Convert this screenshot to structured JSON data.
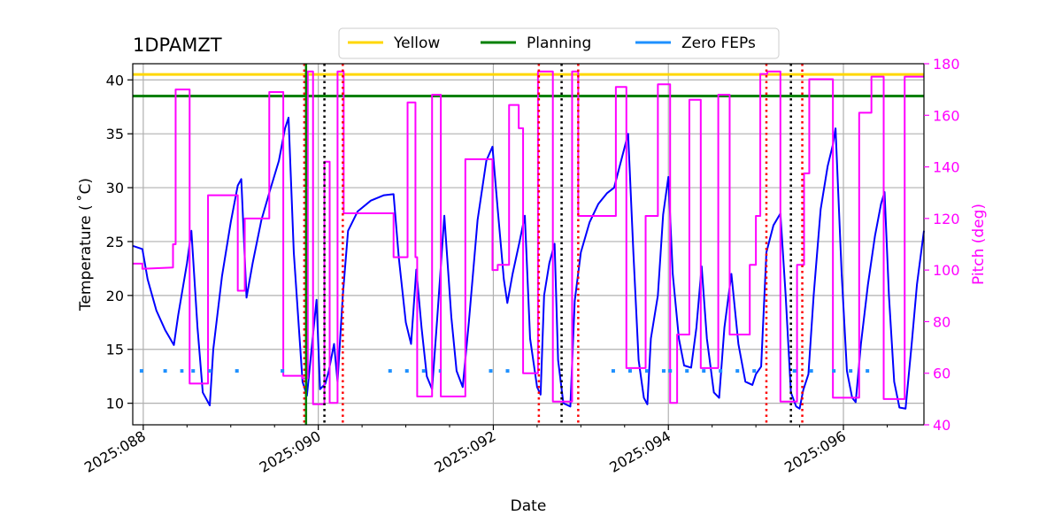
{
  "chart_data": {
    "type": "line",
    "title": "1DPAMZT",
    "xlabel": "Date",
    "ylabel": "Temperature ($^\\circ$C)",
    "ylabel_display": "Temperature ( ˚C)",
    "y2label": "Pitch (deg)",
    "x_unit": "day of year 2025",
    "xlim": [
      87.88,
      96.92
    ],
    "ylim": [
      8.0,
      41.5
    ],
    "y2lim": [
      40,
      180
    ],
    "x_ticks": [
      {
        "value": 88,
        "label": "2025:088"
      },
      {
        "value": 90,
        "label": "2025:090"
      },
      {
        "value": 92,
        "label": "2025:092"
      },
      {
        "value": 94,
        "label": "2025:094"
      },
      {
        "value": 96,
        "label": "2025:096"
      }
    ],
    "y_ticks": [
      10,
      15,
      20,
      25,
      30,
      35,
      40
    ],
    "y2_ticks": [
      40,
      60,
      80,
      100,
      120,
      140,
      160,
      180
    ],
    "grid": true,
    "legend": {
      "placement": "top-center",
      "entries": [
        {
          "name": "Yellow",
          "color": "#ffd700"
        },
        {
          "name": "Planning",
          "color": "#008000"
        },
        {
          "name": "Zero FEPs",
          "color": "#1e90ff"
        }
      ]
    },
    "limits": [
      {
        "name": "Yellow",
        "value": 40.5,
        "color": "#ffd700"
      },
      {
        "name": "Planning",
        "value": 38.5,
        "color": "#008000"
      }
    ],
    "colors": {
      "temperature": "#0000ff",
      "pitch": "#ff00ff",
      "black_vlines": "#000000",
      "red_vlines": "#ff0000",
      "planning_vline": "#008000"
    },
    "series": [
      {
        "axis": "temperature",
        "color": "#0000ff",
        "points": [
          [
            87.88,
            24.6
          ],
          [
            87.99,
            24.3
          ],
          [
            88.05,
            21.5
          ],
          [
            88.15,
            18.6
          ],
          [
            88.25,
            16.8
          ],
          [
            88.35,
            15.4
          ],
          [
            88.4,
            18.2
          ],
          [
            88.5,
            23.0
          ],
          [
            88.55,
            26.0
          ],
          [
            88.62,
            17.0
          ],
          [
            88.68,
            11.0
          ],
          [
            88.76,
            9.8
          ],
          [
            88.8,
            15.0
          ],
          [
            88.9,
            21.8
          ],
          [
            89.0,
            26.8
          ],
          [
            89.08,
            30.2
          ],
          [
            89.12,
            30.8
          ],
          [
            89.18,
            19.8
          ],
          [
            89.25,
            23.0
          ],
          [
            89.35,
            27.0
          ],
          [
            89.45,
            29.8
          ],
          [
            89.55,
            32.5
          ],
          [
            89.62,
            35.5
          ],
          [
            89.66,
            36.5
          ],
          [
            89.72,
            24.0
          ],
          [
            89.82,
            12.0
          ],
          [
            89.87,
            10.7
          ],
          [
            89.96,
            18.0
          ],
          [
            89.98,
            19.6
          ],
          [
            90.02,
            11.3
          ],
          [
            90.08,
            11.8
          ],
          [
            90.12,
            13.0
          ],
          [
            90.18,
            15.5
          ],
          [
            90.22,
            12.0
          ],
          [
            90.28,
            20.0
          ],
          [
            90.34,
            26.0
          ],
          [
            90.45,
            27.8
          ],
          [
            90.6,
            28.8
          ],
          [
            90.75,
            29.3
          ],
          [
            90.86,
            29.4
          ],
          [
            90.92,
            23.5
          ],
          [
            91.0,
            17.5
          ],
          [
            91.06,
            15.5
          ],
          [
            91.12,
            22.4
          ],
          [
            91.18,
            17.0
          ],
          [
            91.24,
            12.5
          ],
          [
            91.3,
            11.3
          ],
          [
            91.36,
            18.0
          ],
          [
            91.44,
            27.4
          ],
          [
            91.52,
            18.0
          ],
          [
            91.58,
            13.0
          ],
          [
            91.65,
            11.5
          ],
          [
            91.72,
            17.5
          ],
          [
            91.82,
            27.0
          ],
          [
            91.92,
            32.5
          ],
          [
            91.99,
            33.8
          ],
          [
            92.05,
            28.0
          ],
          [
            92.12,
            21.5
          ],
          [
            92.16,
            19.3
          ],
          [
            92.22,
            22.0
          ],
          [
            92.3,
            25.0
          ],
          [
            92.36,
            27.4
          ],
          [
            92.42,
            16.0
          ],
          [
            92.5,
            11.5
          ],
          [
            92.54,
            10.8
          ],
          [
            92.58,
            20.0
          ],
          [
            92.64,
            23.0
          ],
          [
            92.7,
            24.8
          ],
          [
            92.74,
            14.0
          ],
          [
            92.8,
            10.0
          ],
          [
            92.88,
            9.7
          ],
          [
            92.93,
            19.5
          ],
          [
            93.0,
            24.0
          ],
          [
            93.1,
            26.8
          ],
          [
            93.2,
            28.5
          ],
          [
            93.3,
            29.5
          ],
          [
            93.38,
            30.0
          ],
          [
            93.46,
            32.5
          ],
          [
            93.54,
            35.0
          ],
          [
            93.6,
            24.0
          ],
          [
            93.66,
            14.0
          ],
          [
            93.72,
            10.5
          ],
          [
            93.76,
            9.9
          ],
          [
            93.8,
            16.0
          ],
          [
            93.88,
            20.0
          ],
          [
            93.94,
            27.5
          ],
          [
            94.0,
            31.0
          ],
          [
            94.05,
            22.0
          ],
          [
            94.12,
            16.0
          ],
          [
            94.18,
            13.5
          ],
          [
            94.26,
            13.3
          ],
          [
            94.32,
            17.0
          ],
          [
            94.38,
            22.7
          ],
          [
            94.44,
            16.0
          ],
          [
            94.52,
            11.0
          ],
          [
            94.58,
            10.5
          ],
          [
            94.64,
            17.0
          ],
          [
            94.72,
            22.0
          ],
          [
            94.8,
            15.5
          ],
          [
            94.88,
            12.0
          ],
          [
            94.96,
            11.7
          ],
          [
            95.0,
            12.7
          ],
          [
            95.06,
            13.4
          ],
          [
            95.12,
            24.0
          ],
          [
            95.2,
            26.5
          ],
          [
            95.28,
            27.6
          ],
          [
            95.34,
            20.0
          ],
          [
            95.4,
            11.0
          ],
          [
            95.46,
            9.7
          ],
          [
            95.5,
            9.5
          ],
          [
            95.54,
            11.2
          ],
          [
            95.6,
            12.7
          ],
          [
            95.66,
            20.0
          ],
          [
            95.74,
            28.0
          ],
          [
            95.82,
            32.0
          ],
          [
            95.88,
            34.0
          ],
          [
            95.91,
            35.5
          ],
          [
            95.98,
            22.0
          ],
          [
            96.04,
            13.0
          ],
          [
            96.1,
            10.5
          ],
          [
            96.14,
            10.1
          ],
          [
            96.2,
            15.5
          ],
          [
            96.28,
            21.0
          ],
          [
            96.36,
            25.5
          ],
          [
            96.43,
            28.5
          ],
          [
            96.47,
            29.6
          ],
          [
            96.52,
            20.0
          ],
          [
            96.58,
            12.0
          ],
          [
            96.64,
            9.6
          ],
          [
            96.71,
            9.5
          ],
          [
            96.78,
            15.5
          ],
          [
            96.84,
            21.0
          ],
          [
            96.92,
            26.0
          ]
        ]
      },
      {
        "axis": "pitch",
        "color": "#ff00ff",
        "points": [
          [
            87.88,
            102.5
          ],
          [
            87.99,
            102.5
          ],
          [
            87.99,
            100.5
          ],
          [
            88.34,
            101.0
          ],
          [
            88.34,
            110.0
          ],
          [
            88.37,
            110.0
          ],
          [
            88.37,
            170.0
          ],
          [
            88.53,
            170.0
          ],
          [
            88.53,
            56.0
          ],
          [
            88.74,
            56.0
          ],
          [
            88.74,
            129.0
          ],
          [
            89.08,
            129.0
          ],
          [
            89.08,
            92.0
          ],
          [
            89.16,
            92.0
          ],
          [
            89.16,
            120.0
          ],
          [
            89.44,
            120.0
          ],
          [
            89.44,
            169.0
          ],
          [
            89.6,
            169.0
          ],
          [
            89.6,
            59.0
          ],
          [
            89.82,
            59.0
          ],
          [
            89.82,
            58.0
          ],
          [
            89.88,
            58.0
          ],
          [
            89.88,
            177.0
          ],
          [
            89.94,
            177.0
          ],
          [
            89.94,
            48.0
          ],
          [
            90.07,
            48.0
          ],
          [
            90.07,
            142.0
          ],
          [
            90.13,
            142.0
          ],
          [
            90.13,
            48.5
          ],
          [
            90.22,
            48.5
          ],
          [
            90.22,
            177.0
          ],
          [
            90.29,
            177.0
          ],
          [
            90.29,
            122.0
          ],
          [
            90.86,
            122.0
          ],
          [
            90.86,
            105.0
          ],
          [
            91.02,
            105.0
          ],
          [
            91.02,
            165.0
          ],
          [
            91.11,
            165.0
          ],
          [
            91.11,
            105.0
          ],
          [
            91.13,
            105.0
          ],
          [
            91.13,
            51.0
          ],
          [
            91.3,
            51.0
          ],
          [
            91.3,
            168.0
          ],
          [
            91.4,
            168.0
          ],
          [
            91.4,
            51.0
          ],
          [
            91.68,
            51.0
          ],
          [
            91.68,
            143.0
          ],
          [
            91.99,
            143.0
          ],
          [
            91.99,
            100.0
          ],
          [
            92.05,
            100.0
          ],
          [
            92.05,
            102.0
          ],
          [
            92.18,
            102.0
          ],
          [
            92.18,
            164.0
          ],
          [
            92.29,
            164.0
          ],
          [
            92.29,
            155.0
          ],
          [
            92.34,
            155.0
          ],
          [
            92.34,
            60.0
          ],
          [
            92.51,
            60.0
          ],
          [
            92.51,
            177.0
          ],
          [
            92.68,
            177.0
          ],
          [
            92.68,
            49.0
          ],
          [
            92.9,
            49.0
          ],
          [
            92.9,
            177.0
          ],
          [
            92.97,
            177.0
          ],
          [
            92.97,
            121.0
          ],
          [
            93.4,
            121.0
          ],
          [
            93.4,
            171.0
          ],
          [
            93.52,
            171.0
          ],
          [
            93.52,
            62.0
          ],
          [
            93.74,
            62.0
          ],
          [
            93.74,
            121.0
          ],
          [
            93.88,
            121.0
          ],
          [
            93.88,
            172.0
          ],
          [
            94.02,
            172.0
          ],
          [
            94.02,
            48.5
          ],
          [
            94.1,
            48.5
          ],
          [
            94.1,
            75.0
          ],
          [
            94.24,
            75.0
          ],
          [
            94.24,
            166.0
          ],
          [
            94.37,
            166.0
          ],
          [
            94.37,
            62.0
          ],
          [
            94.57,
            62.0
          ],
          [
            94.57,
            168.0
          ],
          [
            94.7,
            168.0
          ],
          [
            94.7,
            75.0
          ],
          [
            94.93,
            75.0
          ],
          [
            94.93,
            102.0
          ],
          [
            95.0,
            102.0
          ],
          [
            95.0,
            121.0
          ],
          [
            95.05,
            121.0
          ],
          [
            95.05,
            176.0
          ],
          [
            95.13,
            176.0
          ],
          [
            95.13,
            177.0
          ],
          [
            95.28,
            177.0
          ],
          [
            95.28,
            49.0
          ],
          [
            95.47,
            49.0
          ],
          [
            95.47,
            102.0
          ],
          [
            95.55,
            102.0
          ],
          [
            95.55,
            137.5
          ],
          [
            95.61,
            137.5
          ],
          [
            95.61,
            174.0
          ],
          [
            95.88,
            174.0
          ],
          [
            95.88,
            50.5
          ],
          [
            96.18,
            50.5
          ],
          [
            96.18,
            161.0
          ],
          [
            96.32,
            161.0
          ],
          [
            96.32,
            175.0
          ],
          [
            96.46,
            175.0
          ],
          [
            96.46,
            50.0
          ],
          [
            96.7,
            50.0
          ],
          [
            96.7,
            175.0
          ],
          [
            96.92,
            175.0
          ]
        ]
      },
      {
        "name": "Zero FEPs",
        "axis": "temperature",
        "color": "#1e90ff",
        "style": "dotted",
        "segments": [
          [
            87.96,
            88.06
          ],
          [
            88.23,
            88.46
          ],
          [
            88.55,
            88.8
          ],
          [
            89.05,
            89.22
          ],
          [
            89.57,
            89.7
          ],
          [
            90.8,
            91.4
          ],
          [
            91.95,
            92.3
          ],
          [
            93.35,
            94.0
          ],
          [
            94.0,
            95.02
          ],
          [
            95.42,
            95.7
          ],
          [
            95.87,
            96.3
          ]
        ],
        "value": 13.0
      }
    ],
    "vlines": [
      {
        "x": 89.84,
        "color": "#ff0000",
        "style": "dotted"
      },
      {
        "x": 89.86,
        "color": "#008000",
        "style": "solid"
      },
      {
        "x": 90.07,
        "color": "#000000",
        "style": "dotted"
      },
      {
        "x": 90.28,
        "color": "#ff0000",
        "style": "dotted"
      },
      {
        "x": 92.52,
        "color": "#ff0000",
        "style": "dotted"
      },
      {
        "x": 92.78,
        "color": "#000000",
        "style": "dotted"
      },
      {
        "x": 92.97,
        "color": "#ff0000",
        "style": "dotted"
      },
      {
        "x": 95.12,
        "color": "#ff0000",
        "style": "dotted"
      },
      {
        "x": 95.4,
        "color": "#000000",
        "style": "dotted"
      },
      {
        "x": 95.53,
        "color": "#ff0000",
        "style": "dotted"
      }
    ]
  }
}
